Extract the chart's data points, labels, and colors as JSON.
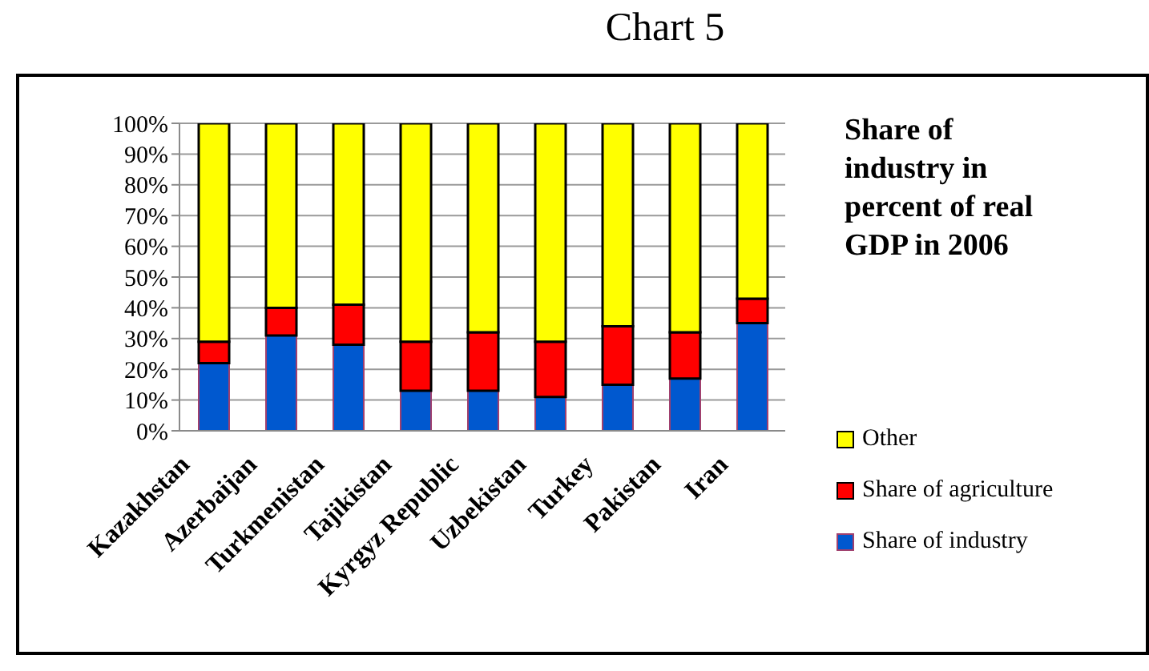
{
  "chart_data": {
    "type": "bar",
    "title": "Share of industry in percent of real GDP in 2006",
    "annotations": [
      "Chart 5"
    ],
    "categories": [
      "Kazakhstan",
      "Azerbaijan",
      "Turkmenistan",
      "Tajikistan",
      "Kyrgyz Republic",
      "Uzbekistan",
      "Turkey",
      "Pakistan",
      "Iran"
    ],
    "series": [
      {
        "name": "Share of industry",
        "color": "#0058cf",
        "values": [
          22,
          31,
          28,
          13,
          13,
          11,
          15,
          17,
          35
        ]
      },
      {
        "name": "Share of agriculture",
        "color": "#ff0000",
        "values": [
          7,
          9,
          13,
          16,
          19,
          18,
          19,
          15,
          8
        ]
      },
      {
        "name": "Other",
        "color": "#ffff00",
        "values": [
          71,
          60,
          59,
          71,
          68,
          71,
          66,
          68,
          57
        ]
      }
    ],
    "stacked": true,
    "ylim": [
      0,
      100
    ],
    "yticks": [
      {
        "value": 0,
        "label": "0%"
      },
      {
        "value": 10,
        "label": "10%"
      },
      {
        "value": 20,
        "label": "20%"
      },
      {
        "value": 30,
        "label": "30%"
      },
      {
        "value": 40,
        "label": "40%"
      },
      {
        "value": 50,
        "label": "50%"
      },
      {
        "value": 60,
        "label": "60%"
      },
      {
        "value": 70,
        "label": "70%"
      },
      {
        "value": 80,
        "label": "80%"
      },
      {
        "value": 90,
        "label": "90%"
      },
      {
        "value": 100,
        "label": "100%"
      }
    ],
    "grid": "y",
    "legend": "right"
  }
}
